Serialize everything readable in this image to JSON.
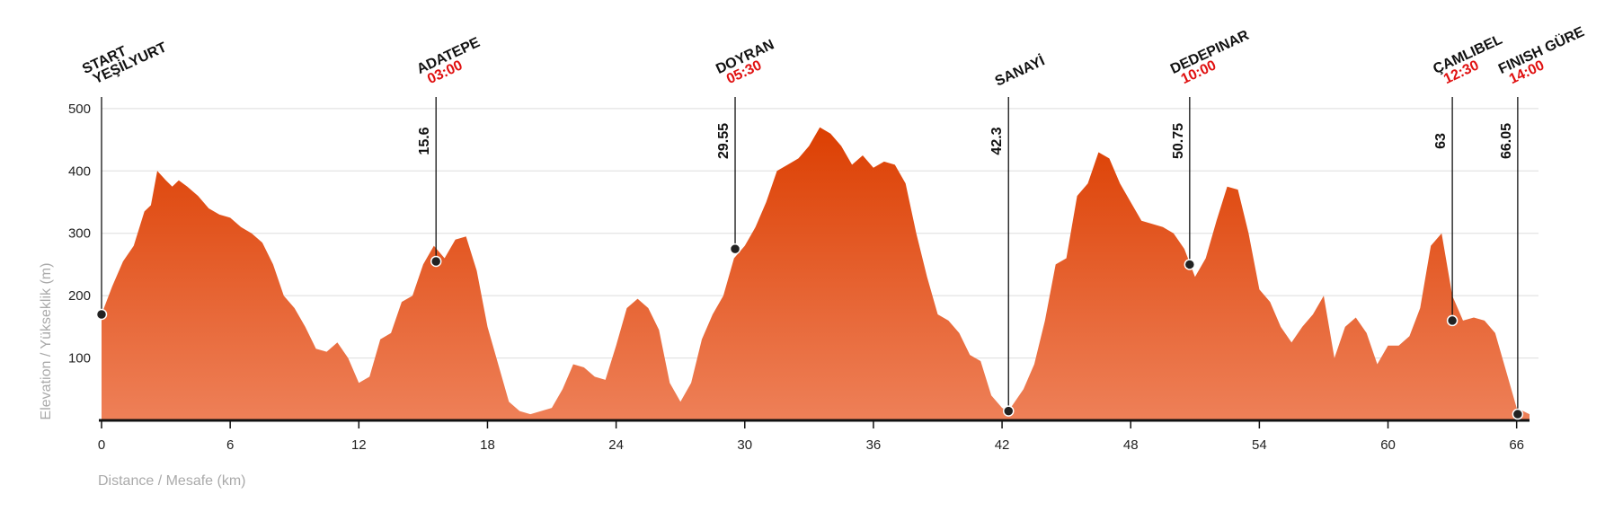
{
  "chart_data": {
    "type": "area",
    "x_label": "Distance / Mesafe (km)",
    "y_label": "Elevation / Yükseklik (m)",
    "distance": [
      0,
      0.5,
      1,
      1.5,
      2,
      2.3,
      2.6,
      3,
      3.3,
      3.6,
      4,
      4.5,
      5,
      5.5,
      6,
      6.5,
      7,
      7.5,
      8,
      8.5,
      9,
      9.5,
      10,
      10.5,
      11,
      11.5,
      12,
      12.5,
      13,
      13.5,
      14,
      14.5,
      15,
      15.5,
      16,
      16.5,
      17,
      17.5,
      18,
      18.5,
      19,
      19.5,
      20,
      21,
      21.5,
      22,
      22.5,
      23,
      23.5,
      24,
      24.5,
      25,
      25.5,
      26,
      26.5,
      27,
      27.5,
      28,
      28.5,
      29,
      29.5,
      30,
      30.5,
      31,
      31.5,
      32,
      32.5,
      33,
      33.5,
      34,
      34.5,
      35,
      35.5,
      36,
      36.5,
      37,
      37.5,
      38,
      38.5,
      39,
      39.5,
      40,
      40.5,
      41,
      41.5,
      42,
      42.3,
      43,
      43.5,
      44,
      44.5,
      45,
      45.5,
      46,
      46.5,
      47,
      47.5,
      48,
      48.5,
      49,
      49.5,
      50,
      50.5,
      51,
      51.5,
      52,
      52.5,
      53,
      53.5,
      54,
      54.5,
      55,
      55.5,
      56,
      56.5,
      57,
      57.5,
      58,
      58.5,
      59,
      59.5,
      60,
      60.5,
      61,
      61.5,
      62,
      62.5,
      63,
      63.5,
      64,
      64.5,
      65,
      65.5,
      66,
      66.6
    ],
    "elevation": [
      170,
      215,
      255,
      280,
      335,
      345,
      400,
      385,
      375,
      385,
      375,
      360,
      340,
      330,
      325,
      310,
      300,
      285,
      250,
      200,
      180,
      150,
      115,
      110,
      125,
      100,
      60,
      70,
      130,
      140,
      190,
      200,
      250,
      280,
      260,
      290,
      295,
      240,
      150,
      90,
      30,
      15,
      10,
      20,
      50,
      90,
      85,
      70,
      65,
      120,
      180,
      195,
      180,
      145,
      60,
      30,
      60,
      130,
      170,
      200,
      260,
      280,
      310,
      350,
      400,
      410,
      420,
      440,
      470,
      460,
      440,
      410,
      425,
      405,
      415,
      410,
      380,
      300,
      230,
      170,
      160,
      140,
      105,
      95,
      40,
      20,
      15,
      50,
      90,
      160,
      250,
      260,
      360,
      380,
      430,
      420,
      380,
      350,
      320,
      315,
      310,
      300,
      275,
      230,
      260,
      320,
      375,
      370,
      300,
      210,
      190,
      150,
      125,
      150,
      170,
      200,
      100,
      150,
      165,
      140,
      90,
      120,
      120,
      135,
      180,
      280,
      300,
      200,
      160,
      165,
      160,
      140,
      80,
      20,
      10
    ],
    "colors": [
      "#dc3f02",
      "#ee8058"
    ],
    "xlim": [
      0,
      66.6
    ],
    "xticks": [
      0,
      6,
      12,
      18,
      24,
      30,
      36,
      42,
      48,
      54,
      60,
      66
    ],
    "ylim": [
      0,
      520
    ],
    "yticks": [
      100,
      200,
      300,
      400,
      500
    ],
    "grid": true,
    "stations": [
      {
        "name": [
          "START",
          "YEŞİLYURT"
        ],
        "km": 0,
        "elevation": 170
      },
      {
        "name": [
          "ADATEPE"
        ],
        "time": "03:00",
        "km": 15.6,
        "elevation": 255
      },
      {
        "name": [
          "DOYRAN"
        ],
        "time": "05:30",
        "km": 29.55,
        "elevation": 275
      },
      {
        "name": [
          "SANAYİ"
        ],
        "km": 42.3,
        "elevation": 15
      },
      {
        "name": [
          "DEDEPINAR"
        ],
        "time": "10:00",
        "km": 50.75,
        "elevation": 250
      },
      {
        "name": [
          "ÇAMLIBEL"
        ],
        "time": "12:30",
        "km": 63,
        "elevation": 160
      },
      {
        "name": [
          "FINISH GÜRE"
        ],
        "time": "14:00",
        "km": 66.05,
        "elevation": 10
      }
    ]
  }
}
